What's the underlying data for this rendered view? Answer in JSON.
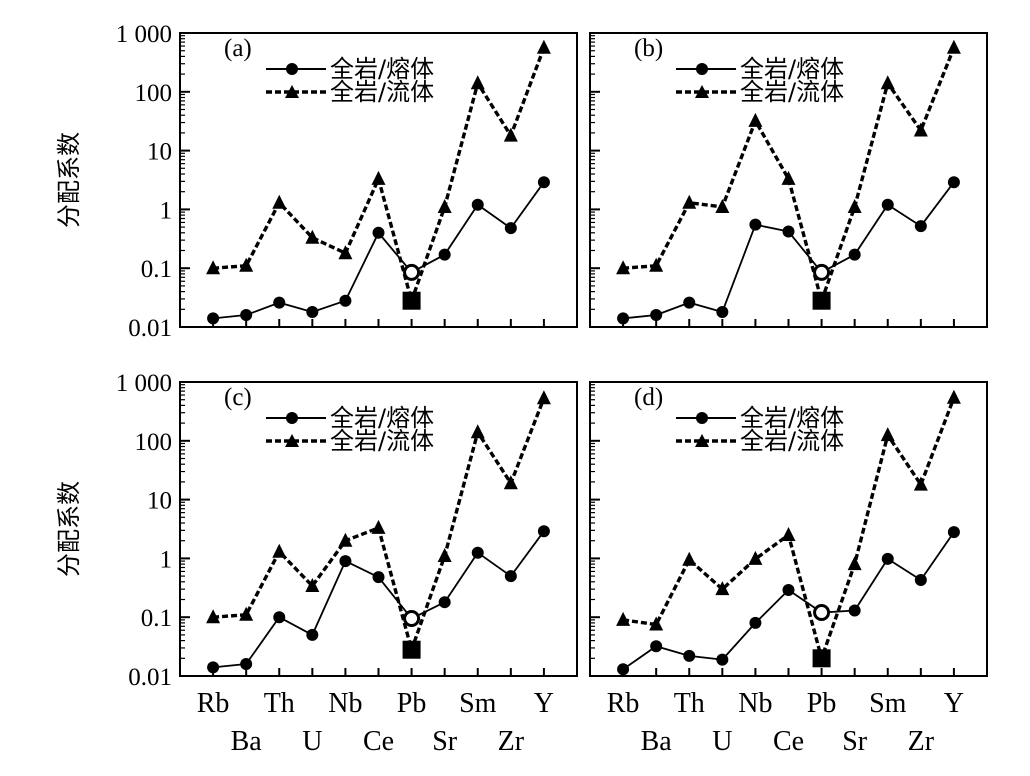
{
  "chart_data": [
    {
      "type": "line",
      "panel_label": "(a)",
      "ylabel": "分配系数",
      "yscale": "log",
      "ylim": [
        0.01,
        1000
      ],
      "yticks": [
        "1 000",
        "100",
        "10",
        "1",
        "0.1",
        "0.01"
      ],
      "categories": [
        "Rb",
        "Ba",
        "Th",
        "U",
        "Nb",
        "Ce",
        "Pb",
        "Sr",
        "Sm",
        "Zr",
        "Y"
      ],
      "legend_position": "top-left",
      "series": [
        {
          "name": "全岩/熔体",
          "style": "solid",
          "marker": "circle",
          "values": [
            0.014,
            0.016,
            0.026,
            0.018,
            0.028,
            0.4,
            0.085,
            0.17,
            1.2,
            0.48,
            2.9
          ]
        },
        {
          "name": "全岩/流体",
          "style": "dashed",
          "marker": "triangle",
          "values": [
            0.1,
            0.11,
            1.3,
            0.33,
            0.18,
            3.3,
            0.028,
            1.1,
            140,
            18,
            560
          ]
        }
      ],
      "special_points": [
        {
          "category": "Pb",
          "value": 0.085,
          "marker": "open-circle"
        },
        {
          "category": "Pb",
          "value": 0.028,
          "marker": "filled-square"
        }
      ]
    },
    {
      "type": "line",
      "panel_label": "(b)",
      "ylabel": "",
      "yscale": "log",
      "ylim": [
        0.01,
        1000
      ],
      "categories": [
        "Rb",
        "Ba",
        "Th",
        "U",
        "Nb",
        "Ce",
        "Pb",
        "Sr",
        "Sm",
        "Zr",
        "Y"
      ],
      "legend_position": "top-left",
      "series": [
        {
          "name": "全岩/熔体",
          "style": "solid",
          "marker": "circle",
          "values": [
            0.014,
            0.016,
            0.026,
            0.018,
            0.55,
            0.42,
            0.085,
            0.17,
            1.2,
            0.52,
            2.9
          ]
        },
        {
          "name": "全岩/流体",
          "style": "dashed",
          "marker": "triangle",
          "values": [
            0.1,
            0.11,
            1.3,
            1.1,
            32,
            3.3,
            0.028,
            1.1,
            140,
            22,
            560
          ]
        }
      ],
      "special_points": [
        {
          "category": "Pb",
          "value": 0.085,
          "marker": "open-circle"
        },
        {
          "category": "Pb",
          "value": 0.028,
          "marker": "filled-square"
        }
      ]
    },
    {
      "type": "line",
      "panel_label": "(c)",
      "ylabel": "分配系数",
      "yscale": "log",
      "ylim": [
        0.01,
        1000
      ],
      "yticks": [
        "1 000",
        "100",
        "10",
        "1",
        "0.1",
        "0.01"
      ],
      "categories": [
        "Rb",
        "Ba",
        "Th",
        "U",
        "Nb",
        "Ce",
        "Pb",
        "Sr",
        "Sm",
        "Zr",
        "Y"
      ],
      "categories_row1": [
        "Rb",
        "Th",
        "Nb",
        "Pb",
        "Sm",
        "Y"
      ],
      "categories_row2": [
        "Ba",
        "U",
        "Ce",
        "Sr",
        "Zr"
      ],
      "legend_position": "top-left",
      "series": [
        {
          "name": "全岩/熔体",
          "style": "solid",
          "marker": "circle",
          "values": [
            0.014,
            0.016,
            0.1,
            0.05,
            0.9,
            0.48,
            0.095,
            0.18,
            1.25,
            0.5,
            2.9
          ]
        },
        {
          "name": "全岩/流体",
          "style": "dashed",
          "marker": "triangle",
          "values": [
            0.1,
            0.11,
            1.3,
            0.34,
            2.0,
            3.3,
            0.028,
            1.1,
            140,
            19,
            530
          ]
        }
      ],
      "special_points": [
        {
          "category": "Pb",
          "value": 0.095,
          "marker": "open-circle"
        },
        {
          "category": "Pb",
          "value": 0.028,
          "marker": "filled-square"
        }
      ]
    },
    {
      "type": "line",
      "panel_label": "(d)",
      "ylabel": "",
      "yscale": "log",
      "ylim": [
        0.01,
        1000
      ],
      "categories": [
        "Rb",
        "Ba",
        "Th",
        "U",
        "Nb",
        "Ce",
        "Pb",
        "Sr",
        "Sm",
        "Zr",
        "Y"
      ],
      "categories_row1": [
        "Rb",
        "Th",
        "Nb",
        "Pb",
        "Sm",
        "Y"
      ],
      "categories_row2": [
        "Ba",
        "U",
        "Ce",
        "Sr",
        "Zr"
      ],
      "legend_position": "top-left",
      "series": [
        {
          "name": "全岩/熔体",
          "style": "solid",
          "marker": "circle",
          "values": [
            0.013,
            0.032,
            0.022,
            0.019,
            0.08,
            0.29,
            0.12,
            0.13,
            0.98,
            0.43,
            2.8
          ]
        },
        {
          "name": "全岩/流体",
          "style": "dashed",
          "marker": "triangle",
          "values": [
            0.09,
            0.075,
            0.95,
            0.3,
            0.98,
            2.5,
            0.02,
            0.8,
            125,
            18,
            540
          ]
        }
      ],
      "special_points": [
        {
          "category": "Pb",
          "value": 0.12,
          "marker": "open-circle"
        },
        {
          "category": "Pb",
          "value": 0.02,
          "marker": "filled-square"
        }
      ]
    }
  ]
}
